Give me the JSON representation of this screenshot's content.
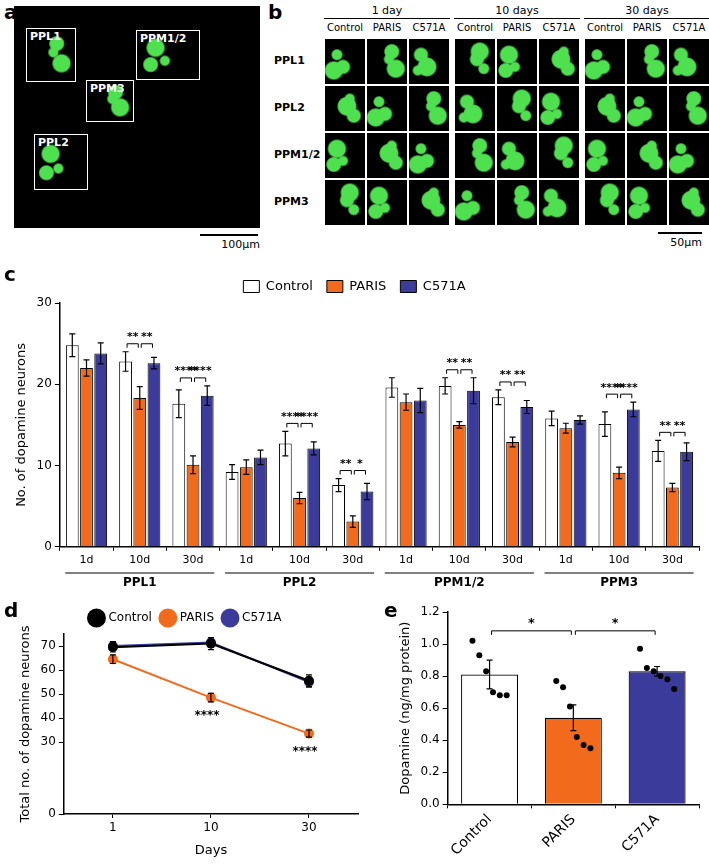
{
  "image_panels": [
    {
      "panel": "a",
      "labels": [
        "PPL1",
        "PPM1/2",
        "PPM3",
        "PPL2"
      ],
      "scale_bar": "100µm"
    },
    {
      "panel": "b",
      "time_headers": [
        "1 day",
        "10 days",
        "30 days"
      ],
      "condition_headers": [
        "Control",
        "PARIS",
        "C571A"
      ],
      "row_labels": [
        "PPL1",
        "PPL2",
        "PPM1/2",
        "PPM3"
      ],
      "scale_bar": "50µm"
    }
  ],
  "chart_data": [
    {
      "panel": "c",
      "type": "bar",
      "categories": [
        "1d",
        "10d",
        "30d",
        "1d",
        "10d",
        "30d",
        "1d",
        "10d",
        "30d",
        "1d",
        "10d",
        "30d"
      ],
      "group_labels": [
        "PPL1",
        "PPL2",
        "PPM1/2",
        "PPM3"
      ],
      "y_label": "No. of dopamine neurons",
      "ylim": [
        0,
        30
      ],
      "yticks": [
        0,
        10,
        20,
        30
      ],
      "grid": false,
      "legend": "top",
      "series": [
        {
          "name": "Control",
          "color": "#ffffff",
          "values": [
            24.8,
            22.8,
            17.6,
            9.2,
            12.7,
            7.6,
            19.6,
            19.8,
            18.4,
            15.8,
            15.1,
            11.8
          ],
          "errors": [
            1.4,
            1.2,
            1.7,
            0.9,
            1.5,
            0.8,
            1.2,
            1.0,
            0.9,
            0.9,
            1.5,
            1.3
          ]
        },
        {
          "name": "PARIS",
          "color": "#f26b1d",
          "values": [
            22.0,
            18.3,
            10.1,
            9.8,
            6.0,
            3.1,
            17.8,
            15.0,
            12.9,
            14.6,
            9.1,
            7.3
          ],
          "errors": [
            1.0,
            1.4,
            1.1,
            0.9,
            0.7,
            0.7,
            1.0,
            0.4,
            0.6,
            0.6,
            0.7,
            0.5
          ]
        },
        {
          "name": "C571A",
          "color": "#3b3b9c",
          "values": [
            23.8,
            22.6,
            18.6,
            11.0,
            12.1,
            6.8,
            18.0,
            19.2,
            17.2,
            15.6,
            16.9,
            11.7
          ],
          "errors": [
            1.3,
            0.7,
            1.2,
            0.9,
            0.8,
            1.0,
            1.5,
            1.6,
            0.8,
            0.5,
            0.9,
            1.1
          ]
        }
      ],
      "annotations": [
        {
          "index": 1,
          "from": "Control",
          "to": "PARIS",
          "label": "**"
        },
        {
          "index": 1,
          "from": "PARIS",
          "to": "C571A",
          "label": "**"
        },
        {
          "index": 2,
          "from": "Control",
          "to": "PARIS",
          "label": "****"
        },
        {
          "index": 2,
          "from": "PARIS",
          "to": "C571A",
          "label": "****"
        },
        {
          "index": 4,
          "from": "Control",
          "to": "PARIS",
          "label": "****"
        },
        {
          "index": 4,
          "from": "PARIS",
          "to": "C571A",
          "label": "****"
        },
        {
          "index": 5,
          "from": "Control",
          "to": "PARIS",
          "label": "**"
        },
        {
          "index": 5,
          "from": "PARIS",
          "to": "C571A",
          "label": "*"
        },
        {
          "index": 7,
          "from": "Control",
          "to": "PARIS",
          "label": "**"
        },
        {
          "index": 7,
          "from": "PARIS",
          "to": "C571A",
          "label": "**"
        },
        {
          "index": 8,
          "from": "Control",
          "to": "PARIS",
          "label": "**"
        },
        {
          "index": 8,
          "from": "PARIS",
          "to": "C571A",
          "label": "**"
        },
        {
          "index": 10,
          "from": "Control",
          "to": "PARIS",
          "label": "****"
        },
        {
          "index": 10,
          "from": "PARIS",
          "to": "C571A",
          "label": "****"
        },
        {
          "index": 11,
          "from": "Control",
          "to": "PARIS",
          "label": "**"
        },
        {
          "index": 11,
          "from": "PARIS",
          "to": "C571A",
          "label": "**"
        }
      ]
    },
    {
      "panel": "d",
      "type": "line",
      "categories": [
        "1",
        "10",
        "30"
      ],
      "x_label": "Days",
      "y_label": "Total no. of dopamine neurons",
      "ylim": [
        0,
        75
      ],
      "yticks": [
        0,
        30,
        40,
        50,
        60,
        70
      ],
      "grid": false,
      "legend": "top",
      "marker": "circle",
      "series": [
        {
          "name": "Control",
          "color": "#000000",
          "values": [
            69.5,
            71.0,
            55.5
          ],
          "errors": [
            2.0,
            2.5,
            2.5
          ]
        },
        {
          "name": "PARIS",
          "color": "#f26b1d",
          "values": [
            64.5,
            48.5,
            33.5
          ],
          "errors": [
            1.8,
            1.8,
            1.5
          ]
        },
        {
          "name": "C571A",
          "color": "#3b3b9c",
          "values": [
            70.0,
            71.5,
            55.0
          ],
          "errors": [
            1.8,
            2.0,
            2.0
          ]
        }
      ],
      "annotations": [
        {
          "index": 1,
          "series": "PARIS",
          "label": "****"
        },
        {
          "index": 2,
          "series": "PARIS",
          "label": "****"
        }
      ]
    },
    {
      "panel": "e",
      "type": "bar",
      "categories": [
        "Control",
        "PARIS",
        "C571A"
      ],
      "y_label": "Dopamine (ng/mg protein)",
      "ylim": [
        0,
        1.2
      ],
      "yticks": [
        {
          "value": 0,
          "label": "0.0"
        },
        0.2,
        0.4,
        0.6,
        0.8,
        {
          "value": 1,
          "label": "1.0"
        },
        1.2
      ],
      "grid": false,
      "marker": "circle",
      "values": [
        0.81,
        0.54,
        0.83
      ],
      "errors": [
        0.09,
        0.08,
        0.03
      ],
      "colors": [
        "#ffffff",
        "#f26b1d",
        "#3b3b9c"
      ],
      "points": [
        [
          1.02,
          0.93,
          0.83,
          0.7,
          0.68,
          0.68
        ],
        [
          0.77,
          0.73,
          0.61,
          0.42,
          0.37,
          0.35
        ],
        [
          0.97,
          0.85,
          0.83,
          0.8,
          0.78,
          0.72
        ]
      ],
      "annotations": [
        {
          "from": "Control",
          "to": "PARIS",
          "label": "*"
        },
        {
          "from": "PARIS",
          "to": "C571A",
          "label": "*"
        }
      ]
    }
  ]
}
